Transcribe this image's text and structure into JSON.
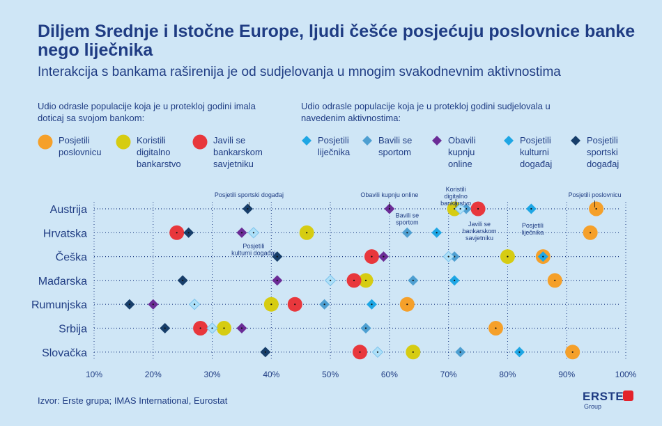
{
  "header": {
    "title": "Diljem Srednje i Istočne Europe, ljudi češće posjećuju poslovnice banke nego liječnika",
    "subtitle": "Interakcija s bankama raširenija je od sudjelovanja u mnogim svakodnevnim aktivnostima"
  },
  "legend": {
    "bank_heading": "Udio odrasle populacije koja je u proteklој godini imala doticaj sa svojom bankom:",
    "activity_heading": "Udio odrasle populacije koja je u protekloj godini sudjelovala u navedenim aktivnostima:"
  },
  "source": "Izvor: Erste grupa; IMAS International, Eurostat",
  "logo": {
    "word": "ERSTE",
    "sub": "Group"
  },
  "colors": {
    "branch": "#f5a02a",
    "digital": "#d6cc12",
    "advisor": "#e8373c",
    "doctor": "#1ea6e4",
    "sport": "#4e9fd1",
    "shopping": "#6b2c96",
    "culture": "#7cc3ec",
    "sportevent": "#173e6a",
    "grid": "#1f3c83"
  },
  "chart_data": {
    "type": "scatter",
    "x_unit": "%",
    "xlim": [
      10,
      100
    ],
    "xticks": [
      "10%",
      "20%",
      "30%",
      "40%",
      "50%",
      "60%",
      "70%",
      "80%",
      "90%",
      "100%"
    ],
    "categories": [
      "Austrija",
      "Hrvatska",
      "Češka",
      "Mađarska",
      "Rumunjska",
      "Srbija",
      "Slovačka"
    ],
    "series": [
      {
        "key": "branch",
        "name": "Posjetili poslovnicu",
        "legend_label": "Posjetili poslovnicu",
        "shape": "circle",
        "values": [
          95,
          94,
          86,
          88,
          63,
          78,
          91
        ]
      },
      {
        "key": "digital",
        "name": "Koristili digitalno bankarstvo",
        "legend_label": "Koristili digitalno bankarstvo",
        "shape": "circle",
        "values": [
          71,
          46,
          80,
          56,
          40,
          32,
          64
        ]
      },
      {
        "key": "advisor",
        "name": "Javili se bankarskom savjetniku",
        "legend_label": "Javili se bankarskom savjetniku",
        "shape": "circle",
        "values": [
          75,
          24,
          57,
          54,
          44,
          28,
          55
        ]
      },
      {
        "key": "doctor",
        "name": "Posjetili liječnika",
        "legend_label": "Posjetili liječnika",
        "shape": "diamond",
        "values": [
          84,
          68,
          86,
          71,
          57,
          56,
          82
        ]
      },
      {
        "key": "sport",
        "name": "Bavili se sportom",
        "legend_label": "Bavili se sportom",
        "shape": "diamond",
        "values": [
          73,
          63,
          71,
          64,
          49,
          56,
          72
        ]
      },
      {
        "key": "shopping",
        "name": "Obavili kupnju online",
        "legend_label": "Obavili kupnju online",
        "shape": "diamond",
        "values": [
          60,
          35,
          59,
          41,
          20,
          35,
          58
        ]
      },
      {
        "key": "culture",
        "name": "Posjetili kulturni događaj",
        "legend_label": "Posjetili kulturni događaj",
        "shape": "diamond",
        "values": [
          72,
          37,
          70,
          50,
          27,
          30,
          58
        ]
      },
      {
        "key": "sportevent",
        "name": "Posjetili sportski događaj",
        "legend_label": "Posjetili sportski događaj",
        "shape": "diamond",
        "values": [
          36,
          26,
          41,
          25,
          16,
          22,
          39
        ]
      }
    ],
    "annotations": [
      {
        "text": "Posjetili sportski događaj",
        "series": "sportevent",
        "row": 0
      },
      {
        "text": "Obavili kupnju online",
        "series": "shopping",
        "row": 0
      },
      {
        "text": "Koristili digitalno bankarstvo",
        "series": "digital",
        "row": 0
      },
      {
        "text": "Posjetili poslovnicu",
        "series": "branch",
        "row": 0
      },
      {
        "text": "Bavili se sportom",
        "series": "sport",
        "row": 1
      },
      {
        "text": "Javili se bankarskom savjetniku",
        "series": "advisor",
        "row": 0
      },
      {
        "text": "Posjetili liječnika",
        "series": "doctor",
        "row": 0
      },
      {
        "text": "Posjetili kulturni događaj",
        "series": "culture",
        "row": 1
      }
    ]
  }
}
